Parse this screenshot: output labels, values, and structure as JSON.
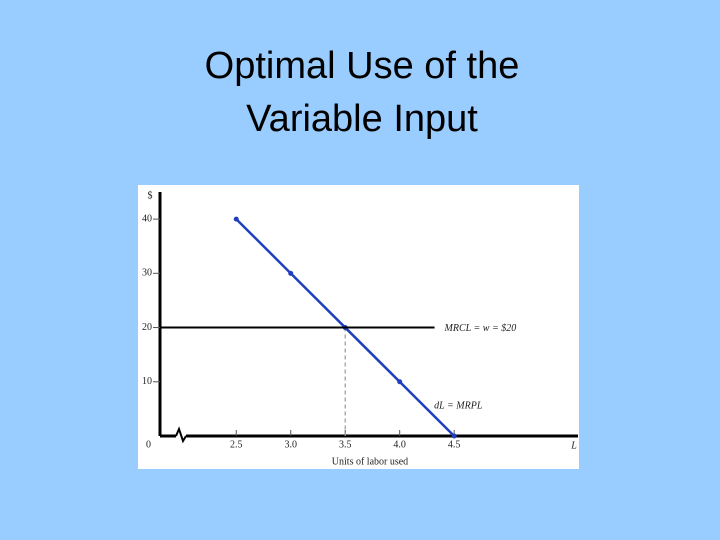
{
  "chart_data": {
    "type": "line",
    "title": [
      "Optimal Use of the",
      "Variable Input"
    ],
    "x_label": "Units of labor used",
    "x_axis_symbol": "L",
    "y_axis_symbol": "$",
    "xlim": [
      1.8,
      5.6
    ],
    "ylim": [
      0,
      45
    ],
    "xticks": [
      {
        "value": 2.5,
        "label": "2.5"
      },
      {
        "value": 3.0,
        "label": "3.0"
      },
      {
        "value": 3.5,
        "label": "3.5"
      },
      {
        "value": 4.0,
        "label": "4.0"
      },
      {
        "value": 4.5,
        "label": "4.5"
      }
    ],
    "yticks": [
      0,
      10,
      20,
      30,
      40
    ],
    "series": [
      {
        "name": "dL = MRPL",
        "color": "#1f3fbf",
        "x": [
          2.5,
          3.0,
          3.5,
          4.0,
          4.5
        ],
        "values": [
          40,
          30,
          20,
          10,
          0
        ]
      },
      {
        "name": "MRCL = w = $20",
        "color": "#000000",
        "x": [
          1.8,
          4.32
        ],
        "values": [
          20,
          20
        ]
      }
    ]
  }
}
